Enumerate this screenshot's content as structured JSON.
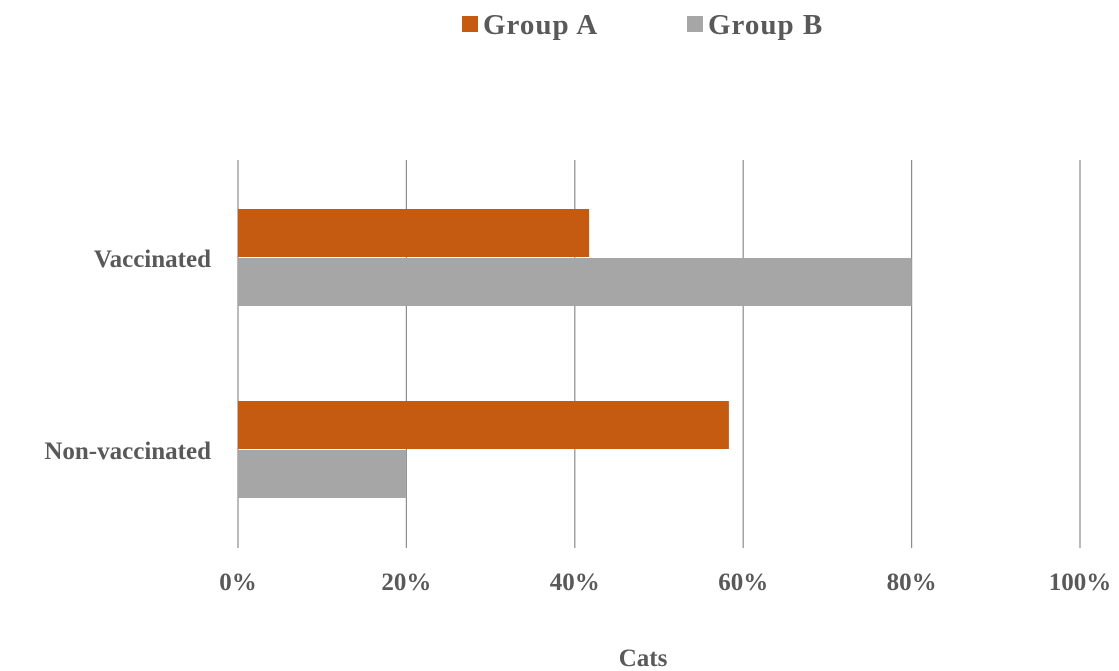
{
  "chart_data": {
    "type": "bar",
    "orientation": "horizontal",
    "title": "",
    "xlabel": "Cats",
    "ylabel": "",
    "categories": [
      "Vaccinated",
      "Non-vaccinated"
    ],
    "series": [
      {
        "name": "Group A",
        "color": "#c55a11",
        "values": [
          41.7,
          58.3
        ]
      },
      {
        "name": "Group B",
        "color": "#a6a6a6",
        "values": [
          80,
          20
        ]
      }
    ],
    "xlim": [
      0,
      100
    ],
    "x_ticks": [
      "0%",
      "20%",
      "40%",
      "60%",
      "80%",
      "100%"
    ],
    "grid": "vertical",
    "legend_position": "top"
  }
}
